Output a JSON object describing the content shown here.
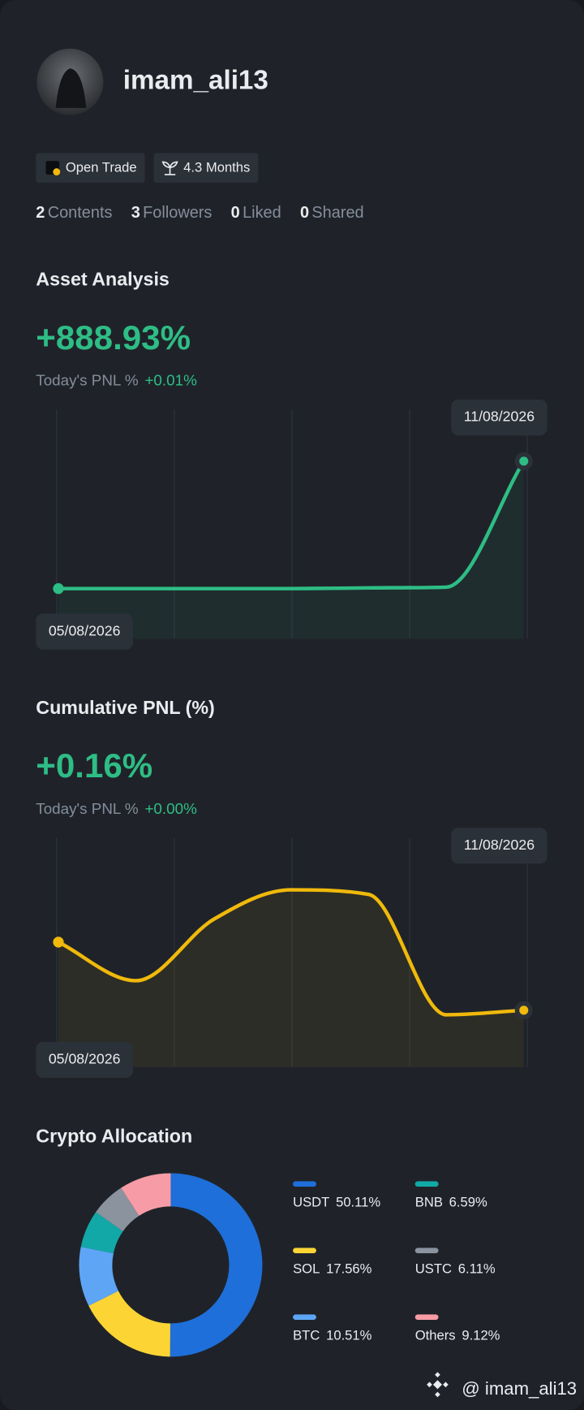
{
  "profile": {
    "username": "imam_ali13",
    "badges": [
      "Open Trade",
      "4.3 Months"
    ],
    "stats": [
      {
        "count": 2,
        "label": "Contents"
      },
      {
        "count": 3,
        "label": "Followers"
      },
      {
        "count": 0,
        "label": "Liked"
      },
      {
        "count": 0,
        "label": "Shared"
      }
    ]
  },
  "chart_data": [
    {
      "type": "line",
      "title": "Asset Analysis",
      "headline": "+888.93%",
      "today_label": "Today's PNL %",
      "today_value": "+0.01%",
      "categories": [
        "05/08/2026",
        null,
        null,
        null,
        null,
        null,
        "11/08/2026"
      ],
      "values": [
        0,
        0,
        0,
        0,
        5,
        10,
        888.93
      ],
      "color": "#2ebd85",
      "ylim": [
        -350,
        1250
      ]
    },
    {
      "type": "line",
      "title": "Cumulative PNL (%)",
      "headline": "+0.16%",
      "today_label": "Today's PNL %",
      "today_value": "+0.00%",
      "categories": [
        "05/08/2026",
        null,
        null,
        null,
        null,
        null,
        "11/08/2026"
      ],
      "values": [
        0.46,
        0.29,
        0.56,
        0.69,
        0.67,
        0.14,
        0.16
      ],
      "color": "#f0b90b",
      "ylim": [
        -0.09,
        0.92
      ]
    },
    {
      "type": "donut",
      "title": "Crypto Allocation",
      "categories": [
        "USDT",
        "SOL",
        "BTC",
        "BNB",
        "USTC",
        "Others"
      ],
      "values": [
        50.11,
        17.56,
        10.51,
        6.59,
        6.11,
        9.12
      ],
      "value_labels": [
        "50.11%",
        "17.56%",
        "10.51%",
        "6.59%",
        "6.11%",
        "9.12%"
      ],
      "colors": [
        "#1e6fd9",
        "#fcd535",
        "#5ea6f5",
        "#12a8a8",
        "#8a939e",
        "#f79ca6"
      ]
    }
  ],
  "watermark": "@ imam_ali13"
}
